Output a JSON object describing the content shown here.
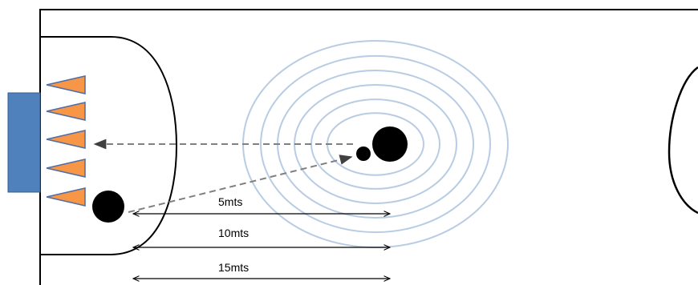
{
  "colors": {
    "panel": "#4f81bd",
    "panel_stroke": "#385d8a",
    "cone": "#f79646",
    "cone_stroke": "#4f6da8",
    "ripple": "#b8cce4",
    "ink": "#000000",
    "dashed_arrow": "#808080"
  },
  "dimensions": [
    {
      "label": "5mts"
    },
    {
      "label": "10mts"
    },
    {
      "label": "15mts"
    }
  ]
}
